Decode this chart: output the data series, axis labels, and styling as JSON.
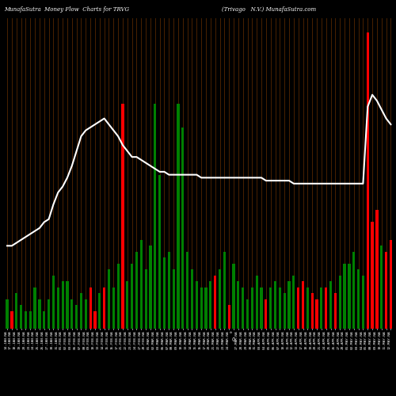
{
  "title_left": "MunafaSutra  Money Flow  Charts for TRVG",
  "title_right": "(Trivago   N.V.) MunafaSutra.com",
  "background_color": "#000000",
  "bar_grid_color": "#4a2200",
  "line_color": "#ffffff",
  "bar_colors": [
    "green",
    "red",
    "green",
    "green",
    "green",
    "green",
    "green",
    "green",
    "green",
    "green",
    "green",
    "green",
    "green",
    "green",
    "green",
    "green",
    "green",
    "green",
    "red",
    "red",
    "green",
    "red",
    "green",
    "green",
    "green",
    "red",
    "green",
    "green",
    "green",
    "green",
    "green",
    "green",
    "green",
    "green",
    "green",
    "green",
    "green",
    "green",
    "green",
    "green",
    "green",
    "green",
    "green",
    "green",
    "green",
    "red",
    "green",
    "green",
    "red",
    "green",
    "green",
    "green",
    "green",
    "green",
    "green",
    "green",
    "red",
    "green",
    "green",
    "green",
    "green",
    "green",
    "green",
    "red",
    "red",
    "green",
    "red",
    "red",
    "green",
    "red",
    "green",
    "red",
    "green",
    "green",
    "green",
    "green",
    "green",
    "green",
    "red",
    "red",
    "red",
    "green",
    "red",
    "red"
  ],
  "bar_heights": [
    5,
    3,
    6,
    4,
    3,
    3,
    7,
    5,
    3,
    5,
    9,
    7,
    8,
    8,
    5,
    4,
    6,
    5,
    7,
    3,
    6,
    7,
    10,
    7,
    11,
    38,
    8,
    11,
    13,
    15,
    10,
    14,
    38,
    26,
    12,
    13,
    10,
    38,
    34,
    13,
    10,
    8,
    7,
    7,
    8,
    9,
    10,
    13,
    4,
    11,
    8,
    7,
    5,
    7,
    9,
    7,
    5,
    7,
    8,
    7,
    6,
    8,
    9,
    7,
    8,
    7,
    6,
    5,
    7,
    7,
    8,
    6,
    9,
    11,
    11,
    13,
    10,
    9,
    50,
    18,
    20,
    14,
    13,
    15
  ],
  "line_values": [
    28,
    28,
    29,
    30,
    31,
    32,
    33,
    34,
    36,
    37,
    42,
    46,
    48,
    51,
    55,
    60,
    65,
    67,
    68,
    69,
    70,
    71,
    69,
    67,
    65,
    62,
    60,
    58,
    58,
    57,
    56,
    55,
    54,
    53,
    53,
    52,
    52,
    52,
    52,
    52,
    52,
    52,
    51,
    51,
    51,
    51,
    51,
    51,
    51,
    51,
    51,
    51,
    51,
    51,
    51,
    51,
    50,
    50,
    50,
    50,
    50,
    50,
    49,
    49,
    49,
    49,
    49,
    49,
    49,
    49,
    49,
    49,
    49,
    49,
    49,
    49,
    49,
    49,
    75,
    79,
    77,
    74,
    71,
    69
  ],
  "xlabels": [
    "14-JAN-NA",
    "17-JAN-NA",
    "18-JAN-NA",
    "19-JAN-NA",
    "20-JAN-NA",
    "23-JAN-NA",
    "24-JAN-NA",
    "25-JAN-NA",
    "26-JAN-NA",
    "27-JAN-NA",
    "30-JAN-NA",
    "31-JAN-NA",
    "01-FEB-NA",
    "02-FEB-NA",
    "03-FEB-NA",
    "06-FEB-NA",
    "07-FEB-NA",
    "08-FEB-NA",
    "09-FEB-NA",
    "10-FEB-NA",
    "13-FEB-NA",
    "14-FEB-NA",
    "15-FEB-NA",
    "16-FEB-NA",
    "17-FEB-NA",
    "21-FEB-NA",
    "22-FEB-NA",
    "23-FEB-NA",
    "24-FEB-NA",
    "27-FEB-NA",
    "28-FEB-NA",
    "01-MAR-NA",
    "02-MAR-NA",
    "03-MAR-NA",
    "06-MAR-NA",
    "07-MAR-NA",
    "08-MAR-NA",
    "09-MAR-NA",
    "10-MAR-NA",
    "13-MAR-NA",
    "14-MAR-NA",
    "15-MAR-NA",
    "16-MAR-NA",
    "17-MAR-NA",
    "20-MAR-NA",
    "21-MAR-NA",
    "22-MAR-NA",
    "23-MAR-NA",
    "24-MAR-NA",
    "0",
    "27-MAR-NA",
    "28-MAR-NA",
    "29-MAR-NA",
    "30-MAR-NA",
    "31-MAR-NA",
    "03-APR-NA",
    "04-APR-NA",
    "05-APR-NA",
    "06-APR-NA",
    "07-APR-NA",
    "10-APR-NA",
    "11-APR-NA",
    "12-APR-NA",
    "13-APR-NA",
    "17-APR-NA",
    "18-APR-NA",
    "19-APR-NA",
    "20-APR-NA",
    "21-APR-NA",
    "24-APR-NA",
    "25-APR-NA",
    "26-APR-NA",
    "27-APR-NA",
    "28-APR-NA",
    "01-MAY-NA",
    "02-MAY-NA",
    "03-MAY-NA",
    "04-MAY-NA",
    "05-MAY-NA",
    "08-MAY-NA",
    "09-MAY-NA",
    "10-MAY-NA",
    "11-MAY-NA",
    "12-MAY-NA"
  ],
  "zero_label_idx": 49,
  "fig_width": 5.0,
  "fig_height": 5.0,
  "dpi": 100
}
